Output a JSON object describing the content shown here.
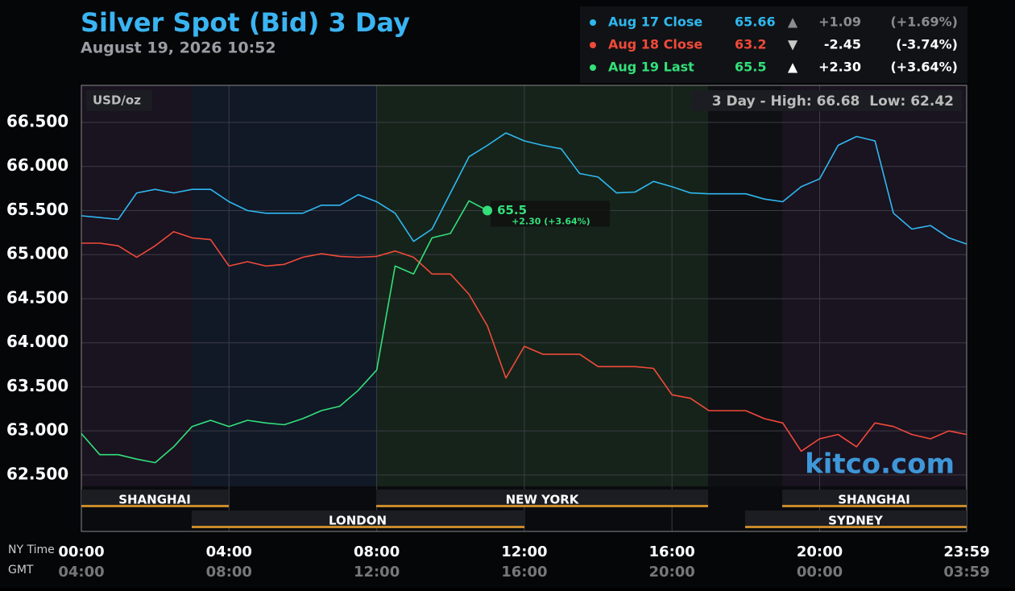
{
  "chart_data": {
    "type": "line",
    "title": "Silver Spot (Bid) 3 Day",
    "subtitle": "August 19, 2026 10:52",
    "unit_label": "USD/oz",
    "high_low": {
      "high_label": "3 Day - High:",
      "high": 66.68,
      "low_label": "Low:",
      "low": 62.42
    },
    "watermark": "kitco.com",
    "x_axis_label": "NY Time",
    "x2_axis_label": "GMT",
    "x": [
      0,
      0.5,
      1,
      1.5,
      2,
      2.5,
      3,
      3.5,
      4,
      4.5,
      5,
      5.5,
      6,
      6.5,
      7,
      7.5,
      8,
      8.5,
      9,
      9.5,
      10,
      10.5,
      11,
      11.5,
      12,
      12.5,
      13,
      13.5,
      14,
      14.5,
      15,
      15.5,
      16,
      16.5,
      17,
      17.5,
      18,
      18.5,
      19,
      19.5,
      20,
      20.5,
      21,
      21.5,
      22,
      22.5,
      23,
      23.5,
      23.983
    ],
    "xlim": [
      0,
      23.983
    ],
    "xticks": [
      {
        "value": 0,
        "label": "00:00"
      },
      {
        "value": 4,
        "label": "04:00"
      },
      {
        "value": 8,
        "label": "08:00"
      },
      {
        "value": 12,
        "label": "12:00"
      },
      {
        "value": 16,
        "label": "16:00"
      },
      {
        "value": 20,
        "label": "20:00"
      },
      {
        "value": 23.983,
        "label": "23:59"
      }
    ],
    "x2tick_labels": [
      "04:00",
      "08:00",
      "12:00",
      "16:00",
      "20:00",
      "00:00",
      "03:59"
    ],
    "ylim": [
      61.86,
      66.92
    ],
    "yticks": [
      {
        "value": 62.5,
        "label": "62.500"
      },
      {
        "value": 63,
        "label": "63.000"
      },
      {
        "value": 63.5,
        "label": "63.500"
      },
      {
        "value": 64,
        "label": "64.000"
      },
      {
        "value": 64.5,
        "label": "64.500"
      },
      {
        "value": 65,
        "label": "65.000"
      },
      {
        "value": 65.5,
        "label": "65.500"
      },
      {
        "value": 66,
        "label": "66.000"
      },
      {
        "value": 66.5,
        "label": "66.500"
      }
    ],
    "grid": true,
    "sessions": [
      "SHANGHAI",
      "NEW YORK",
      "SHANGHAI",
      "LONDON",
      "SYDNEY"
    ],
    "series": [
      {
        "name": "Aug 17 Close",
        "color": "#2fb8f0",
        "last": 65.66,
        "arrow": "▲",
        "change": {
          "value": 1.09,
          "label": "+1.09"
        },
        "change_pct": {
          "value": 1.69,
          "label": "(+1.69%)"
        },
        "values": [
          65.44,
          65.42,
          65.4,
          65.7,
          65.74,
          65.7,
          65.74,
          65.74,
          65.6,
          65.5,
          65.47,
          65.47,
          65.47,
          65.56,
          65.56,
          65.68,
          65.6,
          65.47,
          65.15,
          65.29,
          65.7,
          66.11,
          66.24,
          66.38,
          66.29,
          66.24,
          66.2,
          65.92,
          65.88,
          65.7,
          65.71,
          65.83,
          65.77,
          65.7,
          65.69,
          65.69,
          65.69,
          65.63,
          65.6,
          65.77,
          65.86,
          66.24,
          66.34,
          66.29,
          65.47,
          65.29,
          65.33,
          65.19,
          65.12
        ]
      },
      {
        "name": "Aug 18 Close",
        "color": "#f04a3a",
        "last": 63.2,
        "arrow": "▼",
        "change": {
          "value": -2.45,
          "label": "-2.45"
        },
        "change_pct": {
          "value": -3.74,
          "label": "(-3.74%)"
        },
        "values": [
          65.13,
          65.13,
          65.1,
          64.97,
          65.1,
          65.26,
          65.19,
          65.17,
          64.87,
          64.92,
          64.87,
          64.89,
          64.97,
          65.01,
          64.98,
          64.97,
          64.98,
          65.04,
          64.97,
          64.78,
          64.78,
          64.55,
          64.19,
          63.6,
          63.96,
          63.87,
          63.87,
          63.87,
          63.73,
          63.73,
          63.73,
          63.71,
          63.41,
          63.37,
          63.23,
          63.23,
          63.23,
          63.14,
          63.09,
          62.77,
          62.91,
          62.96,
          62.82,
          63.09,
          63.05,
          62.96,
          62.91,
          63.0,
          62.96
        ]
      },
      {
        "name": "Aug 19 Last",
        "color": "#33e07a",
        "last": 65.5,
        "arrow": "▲",
        "change": {
          "value": 2.3,
          "label": "+2.30"
        },
        "change_pct": {
          "value": 3.64,
          "label": "(+3.64%)"
        },
        "last_annotation": "+2.30 (+3.64%)",
        "values": [
          62.97,
          62.73,
          62.73,
          62.68,
          62.64,
          62.82,
          63.05,
          63.12,
          63.05,
          63.12,
          63.09,
          63.07,
          63.14,
          63.23,
          63.28,
          63.46,
          63.69,
          64.87,
          64.78,
          65.19,
          65.24,
          65.61,
          65.5,
          null,
          null,
          null,
          null,
          null,
          null,
          null,
          null,
          null,
          null,
          null,
          null,
          null,
          null,
          null,
          null,
          null,
          null,
          null,
          null,
          null,
          null,
          null,
          null,
          null,
          null
        ]
      }
    ]
  }
}
